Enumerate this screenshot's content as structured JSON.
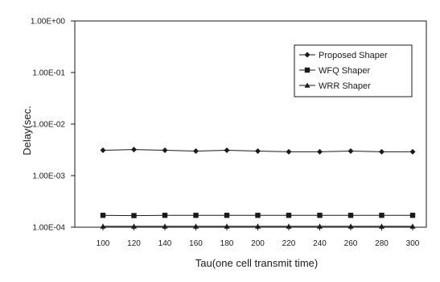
{
  "chart_data": {
    "type": "line",
    "title": "",
    "xlabel": "Tau(one cell transmit time)",
    "ylabel": "Delay(sec.",
    "y_scale": "log",
    "ylim": [
      0.0001,
      1
    ],
    "y_tick_values": [
      1,
      0.1,
      0.01,
      0.001,
      0.0001
    ],
    "y_tick_labels": [
      "1.00E+00",
      "1.00E-01",
      "1.00E-02",
      "1.00E-03",
      "1.00E-04"
    ],
    "x": [
      100,
      120,
      140,
      160,
      180,
      200,
      220,
      240,
      260,
      280,
      300
    ],
    "x_tick_labels": [
      "100",
      "120",
      "140",
      "160",
      "180",
      "200",
      "220",
      "240",
      "260",
      "280",
      "300"
    ],
    "grid": false,
    "legend_position": "top-right",
    "series": [
      {
        "name": "Proposed Shaper",
        "marker": "diamond",
        "values": [
          0.0031,
          0.0032,
          0.0031,
          0.003,
          0.0031,
          0.003,
          0.0029,
          0.0029,
          0.003,
          0.0029,
          0.0029
        ]
      },
      {
        "name": "WFQ Shaper",
        "marker": "square",
        "values": [
          0.00017,
          0.000168,
          0.00017,
          0.00017,
          0.00017,
          0.00017,
          0.00017,
          0.00017,
          0.00017,
          0.00017,
          0.00017
        ]
      },
      {
        "name": "WRR Shaper",
        "marker": "triangle",
        "values": [
          0.000104,
          0.000104,
          0.000104,
          0.000104,
          0.000104,
          0.000104,
          0.000104,
          0.000104,
          0.000104,
          0.000104,
          0.000104
        ]
      }
    ],
    "colors": {
      "line": "#1a1a1a",
      "frame": "#1a1a1a",
      "background": "#ffffff"
    }
  }
}
